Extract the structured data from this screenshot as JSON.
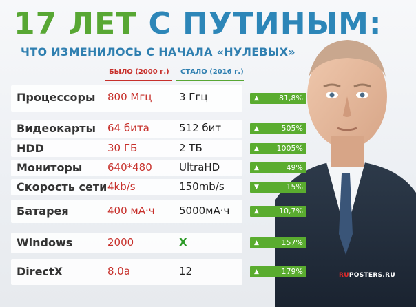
{
  "title": {
    "green_part": "17 ЛЕТ",
    "blue_part": "С ПУТИНЫМ:"
  },
  "subtitle": "ЧТО ИЗМЕНИЛОСЬ С НАЧАЛА «НУЛЕВЫХ»",
  "columns": {
    "was": "БЫЛО (2000 г.)",
    "now": "СТАЛО (2016 г.)"
  },
  "rows": [
    {
      "label": "Процессоры",
      "was": "800 Мгц",
      "now": "3 Ггц",
      "direction": "up",
      "change": "81,8%"
    },
    {
      "label": "Видеокарты",
      "was": "64 бита",
      "now": "512 бит",
      "direction": "up",
      "change": "505%"
    },
    {
      "label": "HDD",
      "was": "30 ГБ",
      "now": "2 ТБ",
      "direction": "up",
      "change": "1005%"
    },
    {
      "label": "Мониторы",
      "was": "640*480",
      "now": "UltraHD",
      "direction": "up",
      "change": "49%"
    },
    {
      "label": "Скорость сети",
      "was": "4kb/s",
      "now": "150mb/s",
      "direction": "down",
      "change": "15%"
    },
    {
      "label": "Батарея",
      "was": "400 мА·ч",
      "now": "5000мА·ч",
      "direction": "up",
      "change": "10,7%"
    },
    {
      "label": "Windows",
      "was": "2000",
      "now": "X",
      "direction": "up",
      "change": "157%"
    },
    {
      "label": "DirectX",
      "was": "8.0a",
      "now": "12",
      "direction": "up",
      "change": "179%"
    }
  ],
  "arrows": {
    "up": "▲",
    "down": "▼"
  },
  "watermark": {
    "red_part": "RU",
    "white_part": "POSTERS.RU"
  },
  "colors": {
    "green": "#58a734",
    "blue": "#2d86b8",
    "red": "#c7302b",
    "badge": "#5aac2f"
  }
}
